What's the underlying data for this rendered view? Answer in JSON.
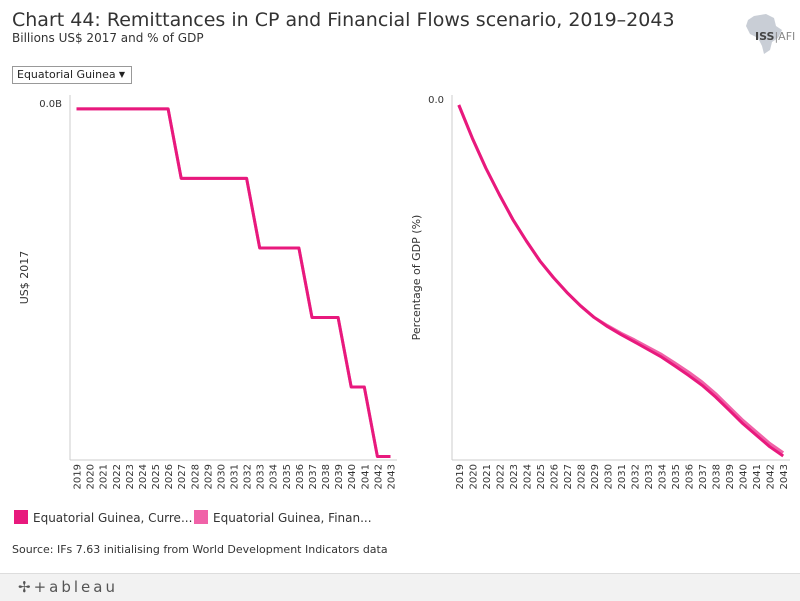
{
  "header": {
    "title": "Chart 44: Remittances in CP and Financial Flows scenario, 2019–2043",
    "subtitle": "Billions US$ 2017 and % of GDP",
    "logo_main": "ISS",
    "logo_suffix": "AFI"
  },
  "filter": {
    "selected": "Equatorial Guinea"
  },
  "colors": {
    "current_path": "#e8197d",
    "financial_flows": "#f062a8",
    "axis": "#cccccc"
  },
  "legend": [
    {
      "label": "Equatorial Guinea, Curre...",
      "color": "#e8197d"
    },
    {
      "label": "Equatorial Guinea, Finan...",
      "color": "#f062a8"
    }
  ],
  "source": "Source: IFs 7.63 initialising from World Development Indicators data",
  "footer": {
    "brand": "+ableau",
    "icon": "tableau-plus-icon"
  },
  "chart_data": [
    {
      "type": "line",
      "title": "",
      "xlabel": "",
      "ylabel": "US$ 2017",
      "y_tick_labels": [
        "0.0B"
      ],
      "ylim": [
        -0.0101,
        0.0004
      ],
      "categories": [
        "2019",
        "2020",
        "2021",
        "2022",
        "2023",
        "2024",
        "2025",
        "2026",
        "2027",
        "2028",
        "2029",
        "2030",
        "2031",
        "2032",
        "2033",
        "2034",
        "2035",
        "2036",
        "2037",
        "2038",
        "2039",
        "2040",
        "2041",
        "2042",
        "2043"
      ],
      "series": [
        {
          "name": "Equatorial Guinea, Current Path",
          "values": [
            0,
            0,
            0,
            0,
            0,
            0,
            0,
            0,
            -0.002,
            -0.002,
            -0.002,
            -0.002,
            -0.002,
            -0.002,
            -0.004,
            -0.004,
            -0.004,
            -0.004,
            -0.006,
            -0.006,
            -0.006,
            -0.008,
            -0.008,
            -0.01,
            -0.01
          ]
        },
        {
          "name": "Equatorial Guinea, Financial Flows",
          "values": [
            0,
            0,
            0,
            0,
            0,
            0,
            0,
            0,
            -0.002,
            -0.002,
            -0.002,
            -0.002,
            -0.002,
            -0.002,
            -0.004,
            -0.004,
            -0.004,
            -0.004,
            -0.006,
            -0.006,
            -0.006,
            -0.008,
            -0.008,
            -0.01,
            -0.01
          ]
        }
      ]
    },
    {
      "type": "line",
      "title": "",
      "xlabel": "",
      "ylabel": "Percentage of GDP (%)",
      "y_tick_labels": [
        "0.0"
      ],
      "ylim": [
        -1.07,
        0.03
      ],
      "categories": [
        "2019",
        "2020",
        "2021",
        "2022",
        "2023",
        "2024",
        "2025",
        "2026",
        "2027",
        "2028",
        "2029",
        "2030",
        "2031",
        "2032",
        "2033",
        "2034",
        "2035",
        "2036",
        "2037",
        "2038",
        "2039",
        "2040",
        "2041",
        "2042",
        "2043"
      ],
      "series": [
        {
          "name": "Equatorial Guinea, Current Path",
          "values": [
            0,
            -0.1,
            -0.19,
            -0.27,
            -0.345,
            -0.41,
            -0.47,
            -0.52,
            -0.565,
            -0.605,
            -0.64,
            -0.668,
            -0.692,
            -0.714,
            -0.737,
            -0.76,
            -0.787,
            -0.815,
            -0.845,
            -0.88,
            -0.92,
            -0.96,
            -0.995,
            -1.03,
            -1.058
          ]
        },
        {
          "name": "Equatorial Guinea, Financial Flows",
          "values": [
            0,
            -0.1,
            -0.19,
            -0.27,
            -0.345,
            -0.41,
            -0.47,
            -0.52,
            -0.565,
            -0.605,
            -0.64,
            -0.665,
            -0.688,
            -0.708,
            -0.73,
            -0.752,
            -0.778,
            -0.805,
            -0.835,
            -0.87,
            -0.91,
            -0.95,
            -0.985,
            -1.02,
            -1.048
          ]
        }
      ]
    }
  ]
}
